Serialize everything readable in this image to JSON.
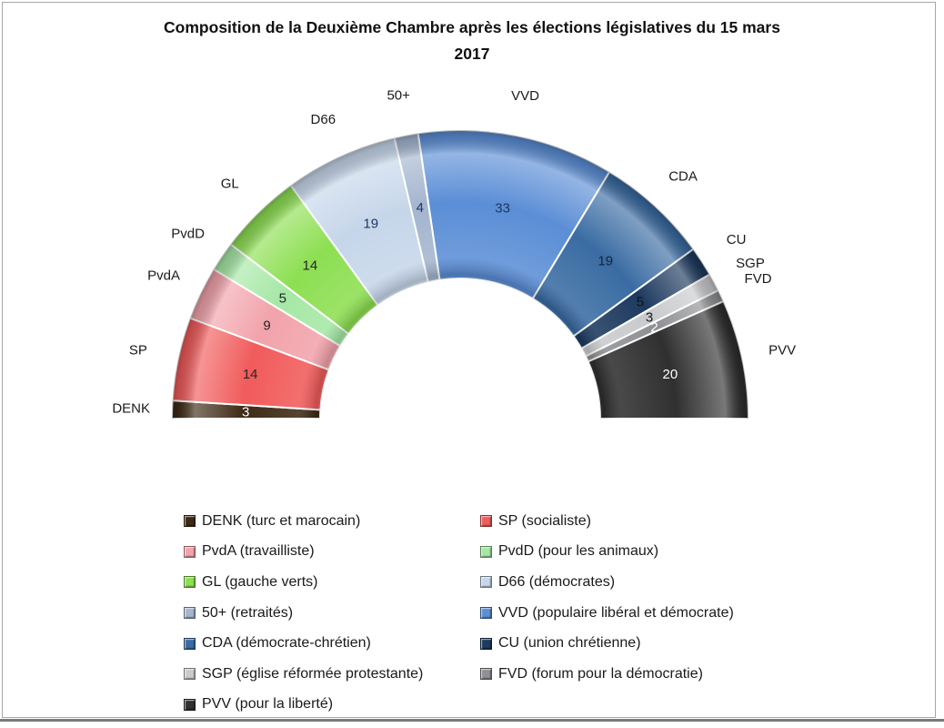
{
  "title": {
    "line1": "Composition de la Deuxième Chambre après les élections législatives du 15 mars",
    "line2": "2017"
  },
  "chart_data": {
    "type": "pie",
    "variant": "half-donut",
    "title": "Composition de la Deuxième Chambre après les élections législatives du 15 mars 2017",
    "total_seats": 150,
    "grid": false,
    "legend_position": "bottom",
    "legend_columns": 2,
    "categories": [
      "DENK",
      "SP",
      "PvdA",
      "PvdD",
      "GL",
      "D66",
      "50+",
      "VVD",
      "CDA",
      "CU",
      "SGP",
      "FVD",
      "PVV"
    ],
    "values": [
      3,
      14,
      9,
      5,
      14,
      19,
      4,
      33,
      19,
      5,
      3,
      2,
      20
    ],
    "parties": [
      {
        "code": "DENK",
        "seats": 3,
        "color": "#3e2a15",
        "value_label_color": "#ffffff",
        "legend_label": "DENK (turc et marocain)"
      },
      {
        "code": "SP",
        "seats": 14,
        "color": "#f15b5b",
        "value_label_color": "#262626",
        "legend_label": "SP (socialiste)"
      },
      {
        "code": "PvdA",
        "seats": 9,
        "color": "#f2a3ab",
        "value_label_color": "#262626",
        "legend_label": "PvdA (travailliste)"
      },
      {
        "code": "PvdD",
        "seats": 5,
        "color": "#a5e8a5",
        "value_label_color": "#262626",
        "legend_label": "PvdD (pour les animaux)"
      },
      {
        "code": "GL",
        "seats": 14,
        "color": "#8ddf52",
        "value_label_color": "#262626",
        "legend_label": "GL (gauche verts)"
      },
      {
        "code": "D66",
        "seats": 19,
        "color": "#c6d6ea",
        "value_label_color": "#1f3864",
        "legend_label": "D66 (démocrates)"
      },
      {
        "code": "50+",
        "seats": 4,
        "color": "#a4b5cf",
        "value_label_color": "#1f3864",
        "legend_label": "50+ (retraités)"
      },
      {
        "code": "VVD",
        "seats": 33,
        "color": "#5b8ed6",
        "value_label_color": "#1f3864",
        "legend_label": "VVD (populaire libéral et démocrate)"
      },
      {
        "code": "CDA",
        "seats": 19,
        "color": "#3a6ca3",
        "value_label_color": "#16243d",
        "legend_label": "CDA (démocrate-chrétien)"
      },
      {
        "code": "CU",
        "seats": 5,
        "color": "#1d3a5f",
        "value_label_color": "#10131a",
        "legend_label": "CU (union chrétienne)"
      },
      {
        "code": "SGP",
        "seats": 3,
        "color": "#c9cacc",
        "value_label_color": "#1a1a1a",
        "legend_label": "SGP (église réformée protestante)"
      },
      {
        "code": "FVD",
        "seats": 2,
        "color": "#8f9094",
        "value_label_color": "#ffffff",
        "legend_label": "FVD (forum pour la démocratie)"
      },
      {
        "code": "PVV",
        "seats": 20,
        "color": "#303030",
        "value_label_color": "#ffffff",
        "legend_label": "PVV (pour la liberté)"
      }
    ]
  }
}
